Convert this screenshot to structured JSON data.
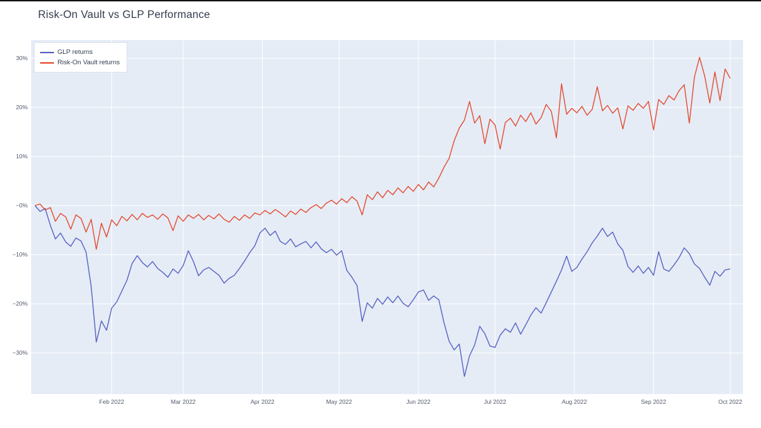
{
  "page": {
    "title": "Risk-On Vault vs GLP Performance"
  },
  "chart_data": {
    "type": "line",
    "title": "Risk-On Vault vs GLP Performance",
    "plot_bgcolor": "#e5ecf6",
    "paper_bgcolor": "#ffffff",
    "grid_color": "#ffffff",
    "legend": {
      "position": "top-left",
      "items": [
        "GLP returns",
        "Risk-On Vault returns"
      ]
    },
    "x_axis": {
      "start_date": "2022-01-02",
      "step_days": 2,
      "domain_days": [
        -1.5,
        277
      ],
      "ticks": [
        {
          "label": "Feb 2022",
          "day": 30
        },
        {
          "label": "Mar 2022",
          "day": 58
        },
        {
          "label": "Apr 2022",
          "day": 89
        },
        {
          "label": "May 2022",
          "day": 119
        },
        {
          "label": "Jun 2022",
          "day": 150
        },
        {
          "label": "Jul 2022",
          "day": 180
        },
        {
          "label": "Aug 2022",
          "day": 211
        },
        {
          "label": "Sep 2022",
          "day": 242
        },
        {
          "label": "Oct 2022",
          "day": 272
        }
      ]
    },
    "y_axis": {
      "unit": "%",
      "range": [
        -38.4,
        33.7
      ],
      "ticks": [
        {
          "label": "30%",
          "value": 30
        },
        {
          "label": "20%",
          "value": 20
        },
        {
          "label": "10%",
          "value": 10
        },
        {
          "label": "−0%",
          "value": 0
        },
        {
          "label": "−10%",
          "value": -10
        },
        {
          "label": "−20%",
          "value": -20
        },
        {
          "label": "−30%",
          "value": -30
        }
      ]
    },
    "series": [
      {
        "name": "GLP returns",
        "color": "#5560c2",
        "line_width": 1.3,
        "values": [
          0,
          -1.2,
          -0.6,
          -4,
          -6.8,
          -5.6,
          -7.4,
          -8.3,
          -6.6,
          -7.2,
          -9.5,
          -16.5,
          -27.8,
          -23.5,
          -25.4,
          -20.9,
          -19.6,
          -17.4,
          -15.2,
          -11.8,
          -10.2,
          -11.6,
          -12.5,
          -11.4,
          -12.8,
          -13.6,
          -14.6,
          -12.9,
          -13.8,
          -12.2,
          -9.2,
          -11.4,
          -14.3,
          -13.1,
          -12.6,
          -13.4,
          -14.2,
          -15.8,
          -14.8,
          -14.2,
          -12.8,
          -11.3,
          -9.6,
          -8.2,
          -5.6,
          -4.6,
          -6.1,
          -5.2,
          -7.3,
          -7.9,
          -6.8,
          -8.4,
          -7.8,
          -7.3,
          -8.6,
          -7.4,
          -8.8,
          -9.6,
          -8.9,
          -10.1,
          -9.2,
          -13.2,
          -14.6,
          -16.3,
          -23.6,
          -19.8,
          -20.9,
          -18.9,
          -20.1,
          -18.6,
          -19.8,
          -18.4,
          -19.9,
          -20.6,
          -19.2,
          -17.6,
          -17.2,
          -19.3,
          -18.4,
          -19.2,
          -23.8,
          -27.6,
          -29.4,
          -28.2,
          -34.8,
          -30.6,
          -28.4,
          -24.6,
          -26.1,
          -28.6,
          -28.9,
          -26.4,
          -25.1,
          -25.8,
          -23.9,
          -26.2,
          -24.3,
          -22.3,
          -20.8,
          -21.9,
          -19.8,
          -17.6,
          -15.4,
          -13.1,
          -10.3,
          -13.4,
          -12.6,
          -10.9,
          -9.4,
          -7.6,
          -6.2,
          -4.6,
          -6.3,
          -5.4,
          -7.8,
          -9.1,
          -12.4,
          -13.6,
          -12.3,
          -13.8,
          -12.6,
          -14.2,
          -9.4,
          -12.9,
          -13.4,
          -12.1,
          -10.6,
          -8.6,
          -9.8,
          -11.9,
          -12.8,
          -14.6,
          -16.2,
          -13.4,
          -14.4,
          -13.1,
          -12.9
        ]
      },
      {
        "name": "Risk-On Vault returns",
        "color": "#e4492e",
        "line_width": 1.3,
        "values": [
          0,
          0.3,
          -0.9,
          -0.4,
          -3.2,
          -1.6,
          -2.3,
          -4.8,
          -1.9,
          -2.6,
          -5.4,
          -2.8,
          -8.9,
          -3.6,
          -6.4,
          -2.9,
          -4.1,
          -2.2,
          -3.1,
          -1.8,
          -2.9,
          -1.6,
          -2.4,
          -1.9,
          -2.8,
          -1.7,
          -2.5,
          -5.1,
          -2.1,
          -3.2,
          -1.9,
          -2.6,
          -1.8,
          -2.9,
          -2,
          -2.7,
          -1.7,
          -2.8,
          -3.4,
          -2.2,
          -3,
          -1.9,
          -2.6,
          -1.5,
          -1.9,
          -1,
          -1.7,
          -0.8,
          -1.5,
          -2.3,
          -1.1,
          -1.8,
          -0.7,
          -1.4,
          -0.4,
          0.2,
          -0.6,
          0.5,
          1.1,
          0.3,
          1.4,
          0.6,
          1.8,
          0.9,
          -1.9,
          2.2,
          1.2,
          2.8,
          1.6,
          3.1,
          2.2,
          3.6,
          2.6,
          3.9,
          2.9,
          4.3,
          3.2,
          4.8,
          3.8,
          5.6,
          7.8,
          9.6,
          13.2,
          15.8,
          17.4,
          21.2,
          16.8,
          18.3,
          12.6,
          17.6,
          16.4,
          11.5,
          16.9,
          17.8,
          16.2,
          18.4,
          17.1,
          18.9,
          16.6,
          17.9,
          20.6,
          19.2,
          13.8,
          24.8,
          18.6,
          19.8,
          18.9,
          20.2,
          18.4,
          19.6,
          24.2,
          19.3,
          20.4,
          18.8,
          19.9,
          15.6,
          20.3,
          19.4,
          20.8,
          19.8,
          21.2,
          15.4,
          21.6,
          20.6,
          22.4,
          21.5,
          23.4,
          24.6,
          16.8,
          26.2,
          30.2,
          26.4,
          20.9,
          27.2,
          21.4,
          27.8,
          25.9
        ]
      }
    ]
  }
}
